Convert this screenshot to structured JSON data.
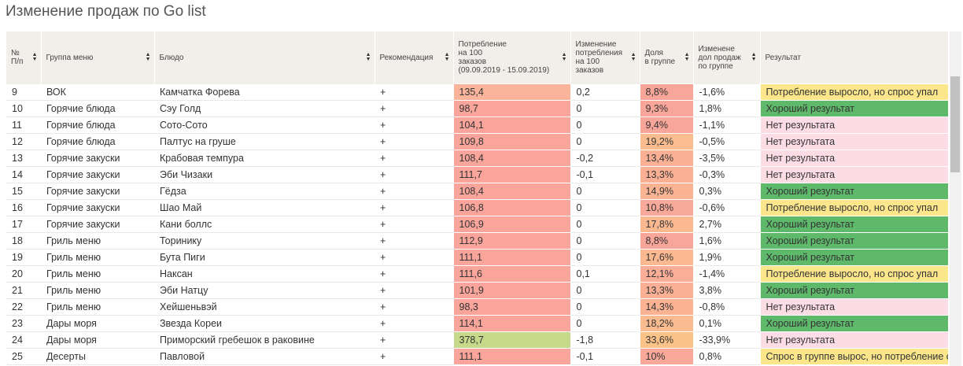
{
  "title": "Изменение продаж по Go list",
  "table": {
    "headers": [
      [
        "№",
        "П/п"
      ],
      [
        "Группа меню"
      ],
      [
        "Блюдо"
      ],
      [
        "Рекомендация"
      ],
      [
        "Потребление",
        "на 100",
        "заказов",
        "(09.09.2019 - 15.09.2019)"
      ],
      [
        "Изменение",
        "потребления",
        "на 100",
        "заказов"
      ],
      [
        "Доля",
        "в группе"
      ],
      [
        "Изменене",
        "дол продаж",
        "по группе"
      ],
      [
        "Результат"
      ]
    ],
    "rows": [
      {
        "cells": [
          "9",
          "ВОК",
          "Камчатка Форева",
          "+",
          "135,4",
          "0,2",
          "8,8%",
          "-1,6%",
          "Потребление выросло, но спрос упал"
        ],
        "consumption_color": "#f9b49b",
        "share_color": "#f8a69a",
        "result_color": "#fbe68c"
      },
      {
        "cells": [
          "10",
          "Горячие блюда",
          "Сэу Голд",
          "+",
          "98,7",
          "0",
          "9,3%",
          "1,8%",
          "Хороший результат"
        ],
        "consumption_color": "#f9a59b",
        "share_color": "#f8a69a",
        "result_color": "#5fb96b"
      },
      {
        "cells": [
          "11",
          "Горячие блюда",
          "Сото-Сото",
          "+",
          "104,1",
          "0",
          "9,4%",
          "-1,1%",
          "Нет результата"
        ],
        "consumption_color": "#f9a59b",
        "share_color": "#f8a69a",
        "result_color": "#fcdde6"
      },
      {
        "cells": [
          "12",
          "Горячие блюда",
          "Палтус на груше",
          "+",
          "109,8",
          "0",
          "19,2%",
          "-0,5%",
          "Нет результата"
        ],
        "consumption_color": "#f9a59b",
        "share_color": "#fbbd8f",
        "result_color": "#fcdde6"
      },
      {
        "cells": [
          "13",
          "Горячие закуски",
          "Крабовая темпура",
          "+",
          "108,4",
          "-0,2",
          "13,4%",
          "-3,5%",
          "Нет результата"
        ],
        "consumption_color": "#f9a59b",
        "share_color": "#fab095",
        "result_color": "#fcdde6"
      },
      {
        "cells": [
          "14",
          "Горячие закуски",
          "Эби Чизаки",
          "+",
          "111,7",
          "-0,1",
          "13,3%",
          "-0,3%",
          "Нет результата"
        ],
        "consumption_color": "#f9a59b",
        "share_color": "#fab095",
        "result_color": "#fcdde6"
      },
      {
        "cells": [
          "15",
          "Горячие закуски",
          "Гёдза",
          "+",
          "108,4",
          "0",
          "14,9%",
          "0,3%",
          "Хороший результат"
        ],
        "consumption_color": "#f9a59b",
        "share_color": "#fbb493",
        "result_color": "#5fb96b"
      },
      {
        "cells": [
          "16",
          "Горячие закуски",
          "Шао Май",
          "+",
          "106,8",
          "0",
          "10,8%",
          "-0,6%",
          "Потребление выросло, но спрос упал"
        ],
        "consumption_color": "#f9a59b",
        "share_color": "#f9a99a",
        "result_color": "#fbe68c"
      },
      {
        "cells": [
          "17",
          "Горячие закуски",
          "Кани боллс",
          "+",
          "106,9",
          "0",
          "17,8%",
          "2,7%",
          "Хороший результат"
        ],
        "consumption_color": "#f9a59b",
        "share_color": "#fbb991",
        "result_color": "#5fb96b"
      },
      {
        "cells": [
          "18",
          "Гриль меню",
          "Торинику",
          "+",
          "112,9",
          "0",
          "8,8%",
          "1,6%",
          "Хороший результат"
        ],
        "consumption_color": "#f9a59b",
        "share_color": "#f8a69a",
        "result_color": "#5fb96b"
      },
      {
        "cells": [
          "19",
          "Гриль меню",
          "Бута Пиги",
          "+",
          "111,1",
          "0",
          "17,6%",
          "1,9%",
          "Хороший результат"
        ],
        "consumption_color": "#f9a59b",
        "share_color": "#fbb991",
        "result_color": "#5fb96b"
      },
      {
        "cells": [
          "20",
          "Гриль меню",
          "Наксан",
          "+",
          "111,6",
          "0,1",
          "12,1%",
          "-1,4%",
          "Потребление выросло, но спрос упал"
        ],
        "consumption_color": "#f9a59b",
        "share_color": "#faad97",
        "result_color": "#fbe68c"
      },
      {
        "cells": [
          "21",
          "Гриль меню",
          "Эби Натцу",
          "+",
          "101,9",
          "0",
          "13,3%",
          "3,8%",
          "Хороший результат"
        ],
        "consumption_color": "#f9a59b",
        "share_color": "#fab095",
        "result_color": "#5fb96b"
      },
      {
        "cells": [
          "22",
          "Гриль меню",
          "Хейшеньвэй",
          "+",
          "98,3",
          "0",
          "14,3%",
          "-0,8%",
          "Нет результата"
        ],
        "consumption_color": "#f9a59b",
        "share_color": "#fbb394",
        "result_color": "#fcdde6"
      },
      {
        "cells": [
          "23",
          "Дары моря",
          "Звезда Кореи",
          "+",
          "114,1",
          "0",
          "18,2%",
          "0,1%",
          "Хороший результат"
        ],
        "consumption_color": "#f9a59b",
        "share_color": "#fbbb90",
        "result_color": "#5fb96b"
      },
      {
        "cells": [
          "24",
          "Дары моря",
          "Приморский гребешок в раковине",
          "+",
          "378,7",
          "-1,8",
          "33,6%",
          "-33,9%",
          "Нет результата"
        ],
        "consumption_color": "#c6d98a",
        "share_color": "#fcc389",
        "result_color": "#fcdde6"
      },
      {
        "cells": [
          "25",
          "Десерты",
          "Павловой",
          "+",
          "111,1",
          "-0,1",
          "10%",
          "0,8%",
          "Спрос в группе вырос, но потребление с"
        ],
        "consumption_color": "#f9a59b",
        "share_color": "#f9a89a",
        "result_color": "#fbe68c"
      }
    ]
  }
}
